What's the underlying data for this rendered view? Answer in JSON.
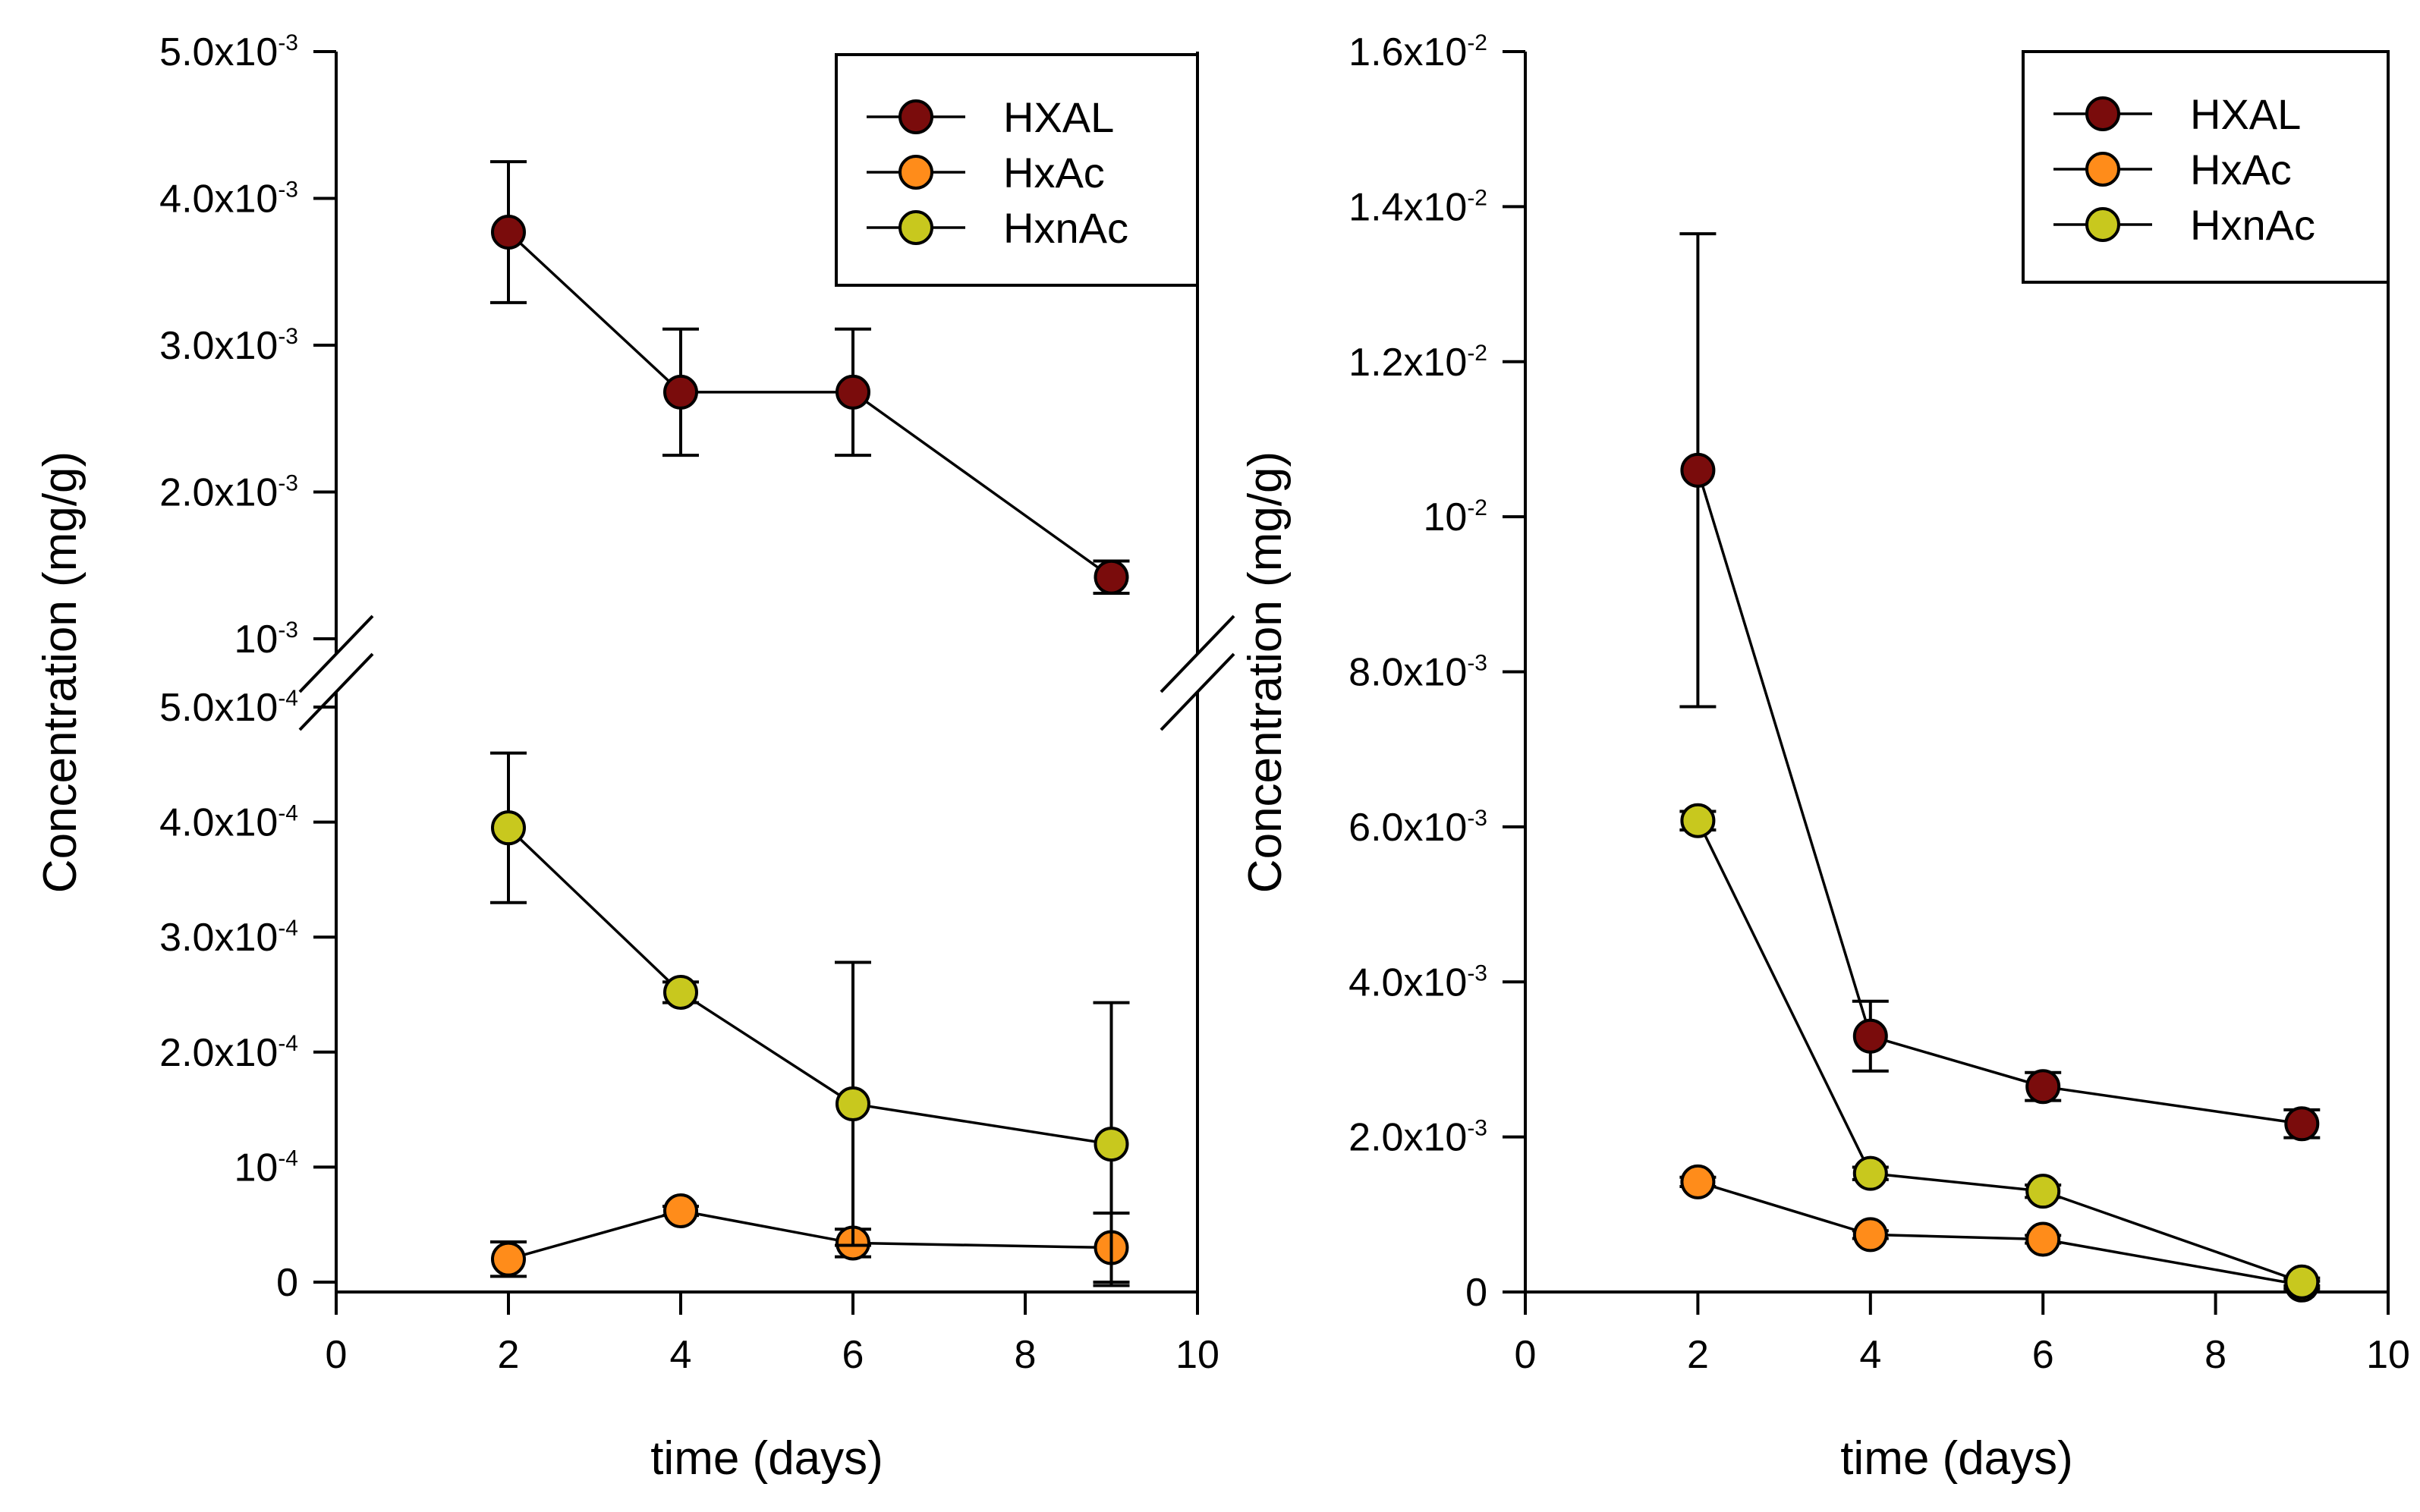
{
  "colors": {
    "HXAL": "#7a0c0c",
    "HxAc": "#ff8c1a",
    "HxnAc": "#c8c81e",
    "axis": "#000000",
    "background": "#ffffff"
  },
  "chart_data": [
    {
      "type": "line",
      "panel": "left",
      "xlabel": "time (days)",
      "ylabel": "Concentration (mg/g)",
      "xlim": [
        0,
        10
      ],
      "x_ticks": [
        "0",
        "2",
        "4",
        "6",
        "8",
        "10"
      ],
      "y_axis_break": true,
      "y_lower": {
        "range": [
          0,
          0.0005
        ],
        "ticks": [
          {
            "value": 0,
            "base": "0",
            "exp": ""
          },
          {
            "value": 0.0001,
            "base": "10",
            "exp": "-4"
          },
          {
            "value": 0.0002,
            "base": "2.0x10",
            "exp": "-4"
          },
          {
            "value": 0.0003,
            "base": "3.0x10",
            "exp": "-4"
          },
          {
            "value": 0.0004,
            "base": "4.0x10",
            "exp": "-4"
          },
          {
            "value": 0.0005,
            "base": "5.0x10",
            "exp": "-4"
          }
        ]
      },
      "y_upper": {
        "range": [
          0.001,
          0.005
        ],
        "ticks": [
          {
            "value": 0.001,
            "base": "10",
            "exp": "-3"
          },
          {
            "value": 0.002,
            "base": "2.0x10",
            "exp": "-3"
          },
          {
            "value": 0.003,
            "base": "3.0x10",
            "exp": "-3"
          },
          {
            "value": 0.004,
            "base": "4.0x10",
            "exp": "-3"
          },
          {
            "value": 0.005,
            "base": "5.0x10",
            "exp": "-3"
          }
        ]
      },
      "legend_position": "top-right",
      "legend": [
        "HXAL",
        "HxAc",
        "HxnAc"
      ],
      "series": [
        {
          "name": "HXAL",
          "x": [
            2,
            4,
            6,
            9
          ],
          "y": [
            0.00377,
            0.00268,
            0.00268,
            0.00142
          ],
          "err": [
            0.00048,
            0.00043,
            0.00043,
            0.00011
          ]
        },
        {
          "name": "HxAc",
          "x": [
            2,
            4,
            6,
            9
          ],
          "y": [
            2e-05,
            6.2e-05,
            3.4e-05,
            3e-05
          ],
          "err": [
            1.5e-05,
            4e-06,
            1.2e-05,
            3e-05
          ]
        },
        {
          "name": "HxnAc",
          "x": [
            2,
            4,
            6,
            9
          ],
          "y": [
            0.000395,
            0.000252,
            0.000155,
            0.00012
          ],
          "err": [
            6.5e-05,
            9e-06,
            0.000123,
            0.000123
          ]
        }
      ]
    },
    {
      "type": "line",
      "panel": "right",
      "xlabel": "time (days)",
      "ylabel": "Concentration (mg/g)",
      "xlim": [
        0,
        10
      ],
      "ylim": [
        0,
        0.016
      ],
      "x_ticks": [
        "0",
        "2",
        "4",
        "6",
        "8",
        "10"
      ],
      "y_ticks": [
        {
          "value": 0,
          "base": "0",
          "exp": ""
        },
        {
          "value": 0.002,
          "base": "2.0x10",
          "exp": "-3"
        },
        {
          "value": 0.004,
          "base": "4.0x10",
          "exp": "-3"
        },
        {
          "value": 0.006,
          "base": "6.0x10",
          "exp": "-3"
        },
        {
          "value": 0.008,
          "base": "8.0x10",
          "exp": "-3"
        },
        {
          "value": 0.01,
          "base": "10",
          "exp": "-2"
        },
        {
          "value": 0.012,
          "base": "1.2x10",
          "exp": "-2"
        },
        {
          "value": 0.014,
          "base": "1.4x10",
          "exp": "-2"
        },
        {
          "value": 0.016,
          "base": "1.6x10",
          "exp": "-2"
        }
      ],
      "legend_position": "top-right",
      "legend": [
        "HXAL",
        "HxAc",
        "HxnAc"
      ],
      "series": [
        {
          "name": "HXAL",
          "x": [
            2,
            4,
            6,
            9
          ],
          "y": [
            0.0106,
            0.0033,
            0.00265,
            0.00217
          ],
          "err": [
            0.00305,
            0.00045,
            0.00018,
            0.00018
          ]
        },
        {
          "name": "HxAc",
          "x": [
            2,
            4,
            6,
            9
          ],
          "y": [
            0.00142,
            0.00074,
            0.00068,
            9e-05
          ],
          "err": [
            6e-05,
            5e-05,
            5e-05,
            5e-05
          ]
        },
        {
          "name": "HxnAc",
          "x": [
            2,
            4,
            6,
            9
          ],
          "y": [
            0.00608,
            0.00153,
            0.0013,
            0.00013
          ],
          "err": [
            0.00012,
            8e-05,
            8e-05,
            5e-05
          ]
        }
      ]
    }
  ]
}
